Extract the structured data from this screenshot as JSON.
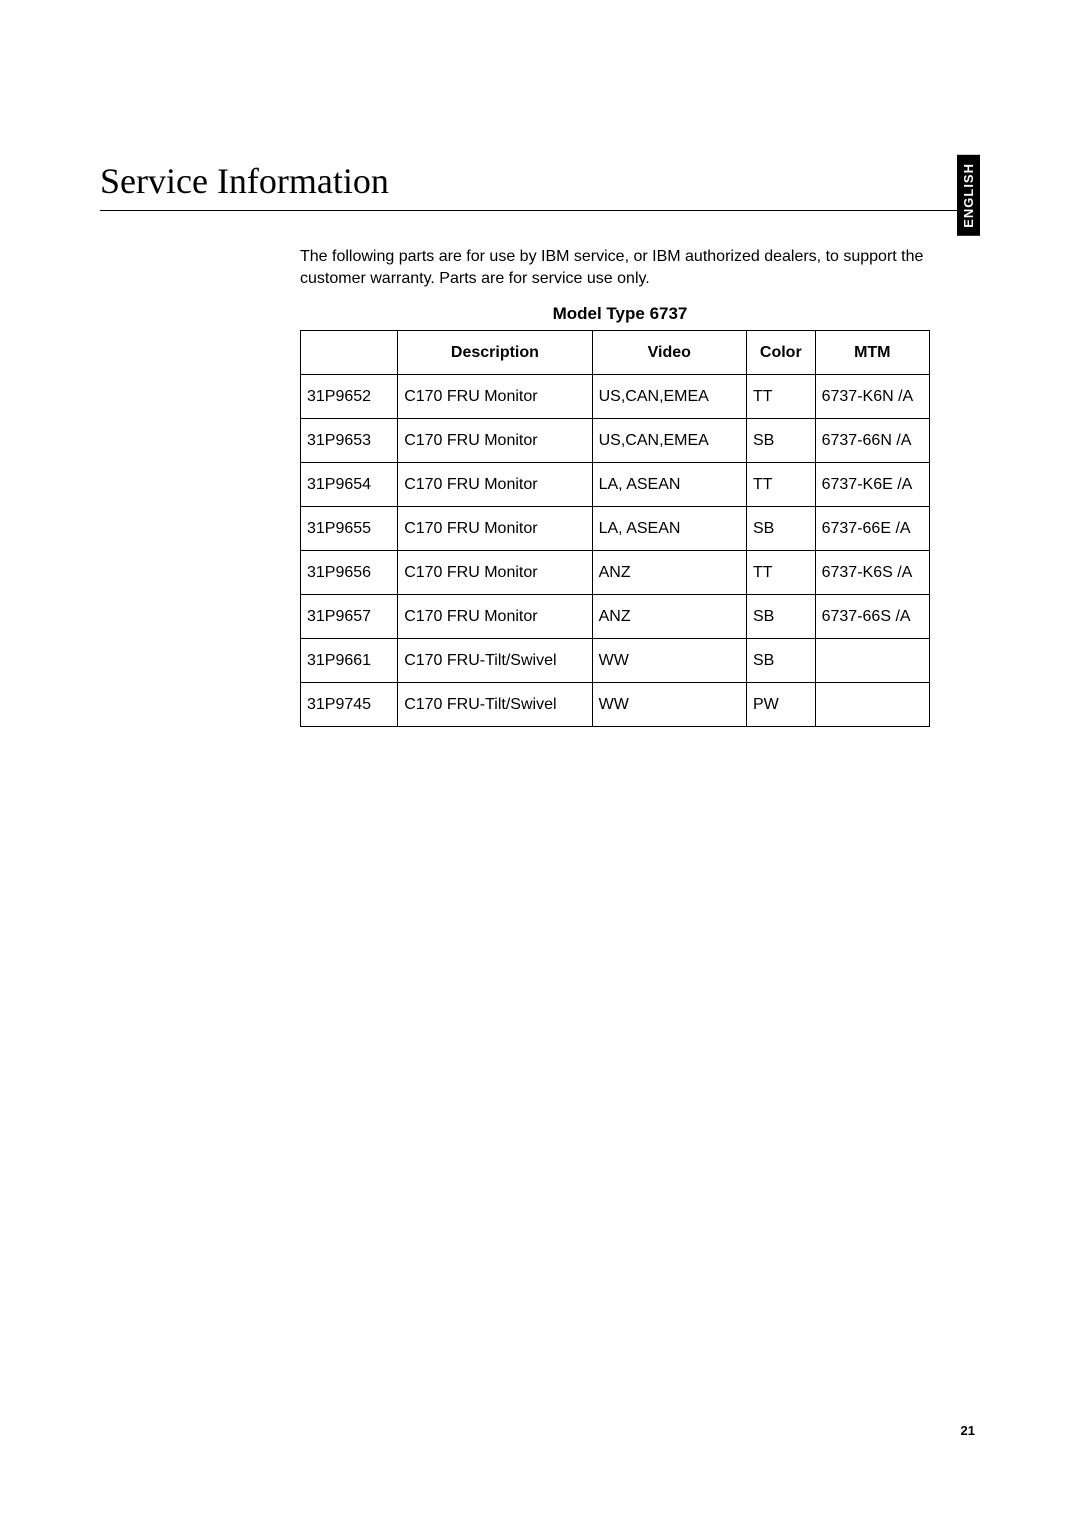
{
  "language_tab": "ENGLISH",
  "page_title": "Service Information",
  "intro_text": "The following parts are for use by IBM service, or IBM authorized dealers, to support the customer warranty. Parts are for service use only.",
  "table": {
    "title": "Model Type 6737",
    "columns": [
      "",
      "Description",
      "Video",
      "Color",
      "MTM"
    ],
    "rows": [
      [
        "31P9652",
        "C170 FRU Monitor",
        "US,CAN,EMEA",
        "TT",
        "6737-K6N /A"
      ],
      [
        "31P9653",
        "C170 FRU Monitor",
        "US,CAN,EMEA",
        "SB",
        "6737-66N /A"
      ],
      [
        "31P9654",
        "C170 FRU Monitor",
        "LA, ASEAN",
        "TT",
        "6737-K6E /A"
      ],
      [
        "31P9655",
        "C170 FRU Monitor",
        "LA, ASEAN",
        "SB",
        "6737-66E /A"
      ],
      [
        "31P9656",
        "C170 FRU Monitor",
        "ANZ",
        "TT",
        "6737-K6S /A"
      ],
      [
        "31P9657",
        "C170 FRU Monitor",
        "ANZ",
        "SB",
        "6737-66S /A"
      ],
      [
        "31P9661",
        "C170 FRU-Tilt/Swivel",
        "WW",
        "SB",
        ""
      ],
      [
        "31P9745",
        "C170 FRU-Tilt/Swivel",
        "WW",
        "PW",
        ""
      ]
    ]
  },
  "page_number": "21"
}
